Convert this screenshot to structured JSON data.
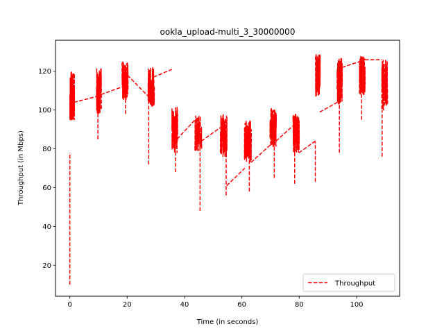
{
  "chart_data": {
    "type": "line",
    "title": "ookla_upload-multi_3_30000000",
    "xlabel": "Time (in seconds)",
    "ylabel": "Throughput (in Mbps)",
    "xlim": [
      -5,
      115
    ],
    "ylim": [
      4,
      136
    ],
    "x_ticks": [
      0,
      20,
      40,
      60,
      80,
      100
    ],
    "y_ticks": [
      20,
      40,
      60,
      80,
      100,
      120
    ],
    "grid": false,
    "legend_position": "bottom-right",
    "series": [
      {
        "name": "Throughput",
        "color": "#ff0000",
        "line_style": "dashed",
        "segments": [
          {
            "t0": 0.0,
            "t1": 1.6,
            "base": 106,
            "amp": 14,
            "lo": 95,
            "hi": 130
          },
          {
            "t0": 9.3,
            "t1": 11.0,
            "base": 110,
            "amp": 12,
            "lo": 94,
            "hi": 130
          },
          {
            "t0": 18.2,
            "t1": 20.3,
            "base": 115,
            "amp": 10,
            "lo": 103,
            "hi": 131
          },
          {
            "t0": 27.3,
            "t1": 29.5,
            "base": 112,
            "amp": 10,
            "lo": 102,
            "hi": 128
          },
          {
            "t0": 35.6,
            "t1": 37.6,
            "base": 90,
            "amp": 12,
            "lo": 70,
            "hi": 114
          },
          {
            "t0": 43.6,
            "t1": 46.0,
            "base": 88,
            "amp": 9,
            "lo": 65,
            "hi": 100
          },
          {
            "t0": 52.5,
            "t1": 54.8,
            "base": 87,
            "amp": 11,
            "lo": 63,
            "hi": 104
          },
          {
            "t0": 60.9,
            "t1": 63.3,
            "base": 84,
            "amp": 11,
            "lo": 63,
            "hi": 97
          },
          {
            "t0": 69.8,
            "t1": 72.0,
            "base": 91,
            "amp": 10,
            "lo": 75,
            "hi": 103
          },
          {
            "t0": 77.8,
            "t1": 80.0,
            "base": 88,
            "amp": 10,
            "lo": 72,
            "hi": 104
          },
          {
            "t0": 85.7,
            "t1": 87.3,
            "base": 118,
            "amp": 11,
            "lo": 102,
            "hi": 131
          },
          {
            "t0": 93.2,
            "t1": 95.0,
            "base": 115,
            "amp": 12,
            "lo": 100,
            "hi": 130
          },
          {
            "t0": 101.0,
            "t1": 103.0,
            "base": 118,
            "amp": 10,
            "lo": 100,
            "hi": 130
          },
          {
            "t0": 108.8,
            "t1": 110.8,
            "base": 113,
            "amp": 13,
            "lo": 88,
            "hi": 128
          }
        ],
        "connectors": [
          [
            [
              1.4,
              104
            ],
            [
              9.4,
              107
            ]
          ],
          [
            [
              10.9,
              108
            ],
            [
              18.3,
              112
            ]
          ],
          [
            [
              20.1,
              118
            ],
            [
              27.4,
              107
            ]
          ],
          [
            [
              29.2,
              117
            ],
            [
              35.6,
              121
            ]
          ],
          [
            [
              37.4,
              85
            ],
            [
              43.7,
              95
            ]
          ],
          [
            [
              45.9,
              84
            ],
            [
              52.5,
              91
            ]
          ],
          [
            [
              54.7,
              61
            ],
            [
              61.0,
              70
            ]
          ],
          [
            [
              63.2,
              73
            ],
            [
              69.9,
              82
            ]
          ],
          [
            [
              71.9,
              84
            ],
            [
              77.9,
              92
            ]
          ],
          [
            [
              79.9,
              78
            ],
            [
              85.6,
              84
            ]
          ],
          [
            [
              87.2,
              99
            ],
            [
              93.3,
              104
            ]
          ],
          [
            [
              94.9,
              122
            ],
            [
              101.1,
              125
            ]
          ],
          [
            [
              102.9,
              126
            ],
            [
              108.9,
              126
            ]
          ]
        ],
        "spikes": [
          {
            "t": 0.0,
            "from": 10,
            "to": 78
          },
          {
            "t": 9.8,
            "from": 85,
            "to": 108
          },
          {
            "t": 19.4,
            "from": 98,
            "to": 120
          },
          {
            "t": 27.5,
            "from": 72,
            "to": 115
          },
          {
            "t": 36.8,
            "from": 68,
            "to": 95
          },
          {
            "t": 45.4,
            "from": 48,
            "to": 85
          },
          {
            "t": 54.5,
            "from": 56,
            "to": 80
          },
          {
            "t": 62.6,
            "from": 58,
            "to": 80
          },
          {
            "t": 71.3,
            "from": 65,
            "to": 95
          },
          {
            "t": 78.4,
            "from": 62,
            "to": 88
          },
          {
            "t": 85.6,
            "from": 63,
            "to": 84
          },
          {
            "t": 94.0,
            "from": 78,
            "to": 110
          },
          {
            "t": 101.7,
            "from": 95,
            "to": 118
          },
          {
            "t": 108.9,
            "from": 76,
            "to": 100
          }
        ]
      }
    ]
  }
}
